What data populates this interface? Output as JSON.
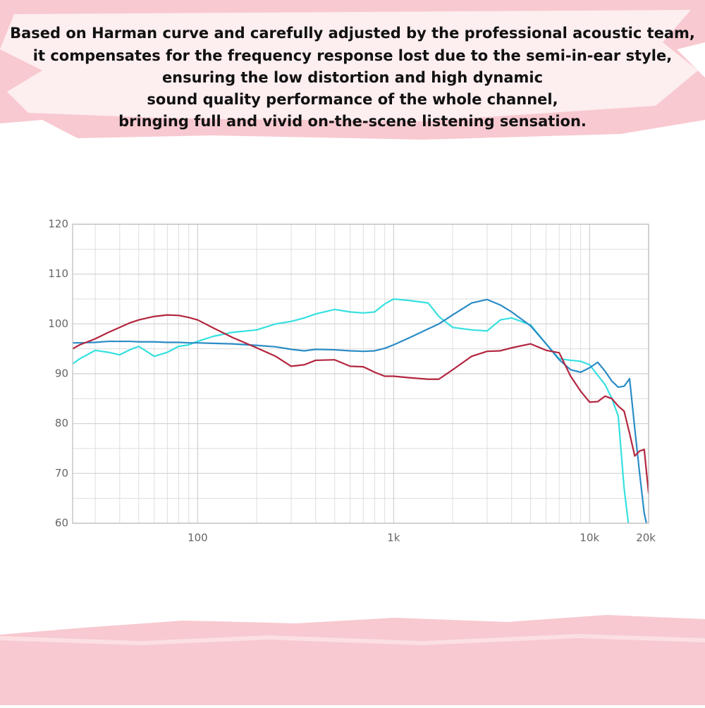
{
  "banner": {
    "lines": [
      "Based on Harman curve and carefully adjusted by the professional acoustic team,",
      "it compensates for the frequency response lost due to the semi-in-ear style,",
      "ensuring the low distortion and high dynamic",
      "sound quality performance of the whole channel,",
      "bringing full and vivid on-the-scene listening sensation."
    ]
  },
  "chart_data": {
    "type": "line",
    "xscale": "log",
    "grid": true,
    "xlim": [
      23,
      20000
    ],
    "ylim": [
      60,
      120
    ],
    "xticks": [
      100,
      {
        "value": 1000,
        "label": "1k"
      },
      {
        "value": 10000,
        "label": "10k"
      },
      {
        "value": 20000,
        "label": "20k"
      }
    ],
    "yticks": [
      60,
      70,
      80,
      90,
      100,
      110,
      120
    ],
    "x_minor_gridlines": [
      30,
      40,
      50,
      60,
      70,
      80,
      90,
      200,
      300,
      400,
      500,
      600,
      700,
      800,
      900,
      2000,
      3000,
      4000,
      5000,
      6000,
      7000,
      8000,
      9000
    ],
    "y_minor_gridlines": [
      65,
      75,
      85,
      95,
      105,
      115
    ],
    "x": [
      23,
      25,
      30,
      35,
      40,
      45,
      50,
      60,
      70,
      80,
      90,
      100,
      120,
      150,
      200,
      250,
      300,
      350,
      400,
      500,
      600,
      700,
      800,
      900,
      1000,
      1200,
      1500,
      1700,
      2000,
      2500,
      3000,
      3500,
      4000,
      5000,
      6000,
      7000,
      8000,
      9000,
      10000,
      11000,
      12000,
      13000,
      14000,
      15000,
      16000,
      17000,
      18000,
      19000,
      20000
    ],
    "series": [
      {
        "color": "#36e0e0",
        "values": [
          92,
          93,
          94.7,
          94.3,
          93.8,
          94.8,
          95.5,
          93.5,
          94.3,
          95.5,
          95.8,
          96.5,
          97.5,
          98.3,
          98.8,
          100,
          100.5,
          101.2,
          102,
          102.9,
          102.4,
          102.2,
          102.4,
          104,
          105,
          104.7,
          104.2,
          101.5,
          99.3,
          98.8,
          98.6,
          100.8,
          101.2,
          99.8,
          96,
          93,
          92.7,
          92.5,
          91.8,
          89.7,
          87.8,
          85,
          81.5,
          67,
          58,
          null,
          null,
          null,
          null
        ]
      },
      {
        "color": "#2a8cc6",
        "values": [
          96.2,
          96.2,
          96.3,
          96.5,
          96.5,
          96.5,
          96.4,
          96.4,
          96.3,
          96.3,
          96.2,
          96.2,
          96.1,
          96,
          95.7,
          95.4,
          94.9,
          94.6,
          94.9,
          94.8,
          94.6,
          94.5,
          94.6,
          95.1,
          95.8,
          97.2,
          99,
          100,
          101.8,
          104.2,
          104.9,
          103.8,
          102.4,
          99.6,
          96,
          92.8,
          90.8,
          90.3,
          91.2,
          92.3,
          90.5,
          88.5,
          87.3,
          87.5,
          89,
          79,
          70,
          62,
          58
        ]
      },
      {
        "color": "#b3263f",
        "values": [
          95,
          95.8,
          97,
          98.3,
          99.3,
          100.2,
          100.8,
          101.5,
          101.8,
          101.7,
          101.3,
          100.8,
          99.2,
          97.3,
          95.2,
          93.5,
          91.5,
          91.8,
          92.7,
          92.8,
          91.5,
          91.4,
          90.3,
          89.5,
          89.5,
          89.2,
          88.9,
          88.9,
          90.8,
          93.5,
          94.5,
          94.6,
          95.2,
          96,
          94.7,
          94.2,
          89.5,
          86.5,
          84.3,
          84.4,
          85.5,
          85,
          83.5,
          82.5,
          78,
          73.5,
          74.5,
          74.8,
          66
        ]
      }
    ]
  }
}
